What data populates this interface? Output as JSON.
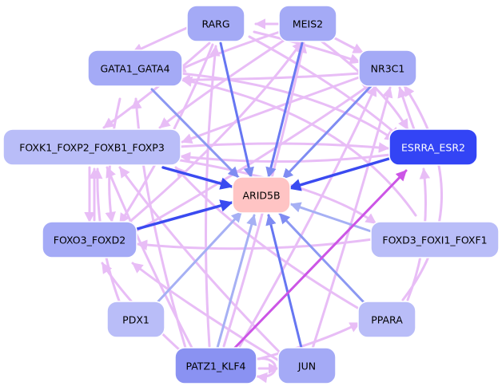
{
  "colors": {
    "background": "#ffffff",
    "target_node": "#ffc4c4",
    "node_dark": "#3344f5",
    "node_mid": "#8a92f2",
    "node_light": "#a4aaf6",
    "node_pale": "#b9bdf8",
    "edge_strong": "#3a4af0",
    "edge_medium": "#7f8cf2",
    "edge_light": "#a6b0f4",
    "edge_pink": "#e8bdf6",
    "edge_magenta": "#cc55e6"
  },
  "nodes": {
    "target": {
      "label": "ARID5B"
    },
    "rarg": {
      "label": "RARG"
    },
    "meis2": {
      "label": "MEIS2"
    },
    "gata1_gata4": {
      "label": "GATA1_GATA4"
    },
    "nr3c1": {
      "label": "NR3C1"
    },
    "foxk1": {
      "label": "FOXK1_FOXP2_FOXB1_FOXP3"
    },
    "esrra_esr2": {
      "label": "ESRRA_ESR2"
    },
    "foxo3_foxd2": {
      "label": "FOXO3_FOXD2"
    },
    "foxd3": {
      "label": "FOXD3_FOXI1_FOXF1"
    },
    "pdx1": {
      "label": "PDX1"
    },
    "ppara": {
      "label": "PPARA"
    },
    "patz1_klf4": {
      "label": "PATZ1_KLF4"
    },
    "jun": {
      "label": "JUN"
    }
  }
}
